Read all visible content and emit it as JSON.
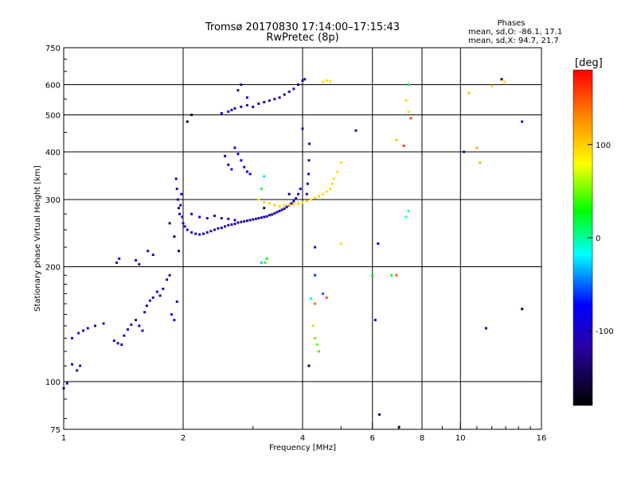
{
  "title": "Tromsø 20170830 17:14:00–17:15:43",
  "subtitle": "RwPretec (8p)",
  "stats": {
    "heading": "Phases",
    "line_o": "mean, sd,O: -86.1, 17.1",
    "line_x": "mean, sd,X:  94.7, 21.7"
  },
  "chart_data": {
    "type": "scatter",
    "title": "Tromsø 20170830 17:14:00–17:15:43",
    "subtitle": "RwPretec (8p)",
    "xlabel": "Frequency [MHz]",
    "ylabel": "Stationary phase Virtual Height [km]",
    "xscale": "log",
    "yscale": "log",
    "xlim": [
      1,
      16
    ],
    "ylim": [
      75,
      750
    ],
    "xticks": [
      1,
      2,
      4,
      6,
      8,
      10,
      16
    ],
    "xgrid": [
      2,
      4,
      6,
      8,
      10
    ],
    "yticks": [
      75,
      100,
      200,
      300,
      400,
      500,
      600,
      750
    ],
    "ygrid": [
      100,
      200,
      300,
      400,
      500,
      600
    ],
    "colorbar": {
      "label": "[deg]",
      "range": [
        -180,
        180
      ],
      "ticks": [
        -100,
        0,
        100
      ],
      "colors": [
        "#000000",
        "#0000ff",
        "#00ffff",
        "#00ff00",
        "#ffff00",
        "#ff0000"
      ]
    },
    "series": [
      {
        "mode": "O",
        "points": [
          [
            1.0,
            96,
            -110
          ],
          [
            1.02,
            99,
            -105
          ],
          [
            1.05,
            111,
            -100
          ],
          [
            1.08,
            107,
            -112
          ],
          [
            1.1,
            110,
            -108
          ],
          [
            1.05,
            130,
            -90
          ],
          [
            1.09,
            134,
            -95
          ],
          [
            1.12,
            136,
            -100
          ],
          [
            1.15,
            138,
            -105
          ],
          [
            1.2,
            140,
            -115
          ],
          [
            1.26,
            142,
            -112
          ],
          [
            1.34,
            128,
            -110
          ],
          [
            1.37,
            126,
            -115
          ],
          [
            1.4,
            125,
            -105
          ],
          [
            1.42,
            132,
            -100
          ],
          [
            1.45,
            137,
            -95
          ],
          [
            1.48,
            141,
            -112
          ],
          [
            1.52,
            145,
            -118
          ],
          [
            1.55,
            140,
            -95
          ],
          [
            1.58,
            136,
            -90
          ],
          [
            1.6,
            152,
            -105
          ],
          [
            1.62,
            158,
            -112
          ],
          [
            1.65,
            163,
            -100
          ],
          [
            1.68,
            166,
            -95
          ],
          [
            1.72,
            172,
            -110
          ],
          [
            1.75,
            168,
            -95
          ],
          [
            1.78,
            175,
            -105
          ],
          [
            1.82,
            185,
            -112
          ],
          [
            1.85,
            190,
            -108
          ],
          [
            1.87,
            150,
            -95
          ],
          [
            1.9,
            145,
            -100
          ],
          [
            1.93,
            162,
            -108
          ],
          [
            1.36,
            205,
            -115
          ],
          [
            1.38,
            210,
            -110
          ],
          [
            1.52,
            208,
            -100
          ],
          [
            1.55,
            203,
            -112
          ],
          [
            1.63,
            220,
            -110
          ],
          [
            1.68,
            215,
            -100
          ],
          [
            1.92,
            340,
            -110
          ],
          [
            1.93,
            320,
            -100
          ],
          [
            1.94,
            300,
            -105
          ],
          [
            1.95,
            285,
            -115
          ],
          [
            1.96,
            275,
            -120
          ],
          [
            1.97,
            290,
            -108
          ],
          [
            1.98,
            310,
            -100
          ],
          [
            1.99,
            270,
            -112
          ],
          [
            2.0,
            260,
            -118
          ],
          [
            2.02,
            255,
            -112
          ],
          [
            2.05,
            250,
            -100
          ],
          [
            2.1,
            246,
            -115
          ],
          [
            2.15,
            244,
            -118
          ],
          [
            2.2,
            243,
            -120
          ],
          [
            2.25,
            244,
            -110
          ],
          [
            2.3,
            246,
            -105
          ],
          [
            2.35,
            248,
            -112
          ],
          [
            2.4,
            250,
            -118
          ],
          [
            2.45,
            252,
            -110
          ],
          [
            2.5,
            253,
            -102
          ],
          [
            2.55,
            255,
            -108
          ],
          [
            2.6,
            257,
            -115
          ],
          [
            2.65,
            258,
            -118
          ],
          [
            2.7,
            259,
            -110
          ],
          [
            2.75,
            261,
            -105
          ],
          [
            2.8,
            262,
            -112
          ],
          [
            2.85,
            263,
            -118
          ],
          [
            2.9,
            264,
            -120
          ],
          [
            2.95,
            265,
            -115
          ],
          [
            3.0,
            266,
            -110
          ],
          [
            3.05,
            267,
            -112
          ],
          [
            3.1,
            268,
            -118
          ],
          [
            3.15,
            269,
            -115
          ],
          [
            3.2,
            270,
            -110
          ],
          [
            3.25,
            271,
            -112
          ],
          [
            3.3,
            273,
            -118
          ],
          [
            3.35,
            274,
            -115
          ],
          [
            3.4,
            276,
            -110
          ],
          [
            3.45,
            278,
            -108
          ],
          [
            3.5,
            280,
            -112
          ],
          [
            3.55,
            282,
            -118
          ],
          [
            3.6,
            284,
            -115
          ],
          [
            3.65,
            287,
            -110
          ],
          [
            3.7,
            290,
            -108
          ],
          [
            3.75,
            293,
            -112
          ],
          [
            3.8,
            297,
            -105
          ],
          [
            3.85,
            302,
            -100
          ],
          [
            3.9,
            310,
            -95
          ],
          [
            3.95,
            320,
            -92
          ],
          [
            2.1,
            275,
            -110
          ],
          [
            2.2,
            270,
            -100
          ],
          [
            2.3,
            268,
            -95
          ],
          [
            2.4,
            272,
            -100
          ],
          [
            2.5,
            268,
            -100
          ],
          [
            2.6,
            267,
            -95
          ],
          [
            2.7,
            265,
            -100
          ],
          [
            4.1,
            310,
            -110
          ],
          [
            4.12,
            330,
            -100
          ],
          [
            4.14,
            350,
            -95
          ],
          [
            4.15,
            380,
            -105
          ],
          [
            4.16,
            420,
            -110
          ],
          [
            2.55,
            390,
            -100
          ],
          [
            2.6,
            370,
            -95
          ],
          [
            2.65,
            360,
            -100
          ],
          [
            2.7,
            410,
            -95
          ],
          [
            2.75,
            395,
            -100
          ],
          [
            2.8,
            380,
            -95
          ],
          [
            2.85,
            365,
            -100
          ],
          [
            2.9,
            355,
            -95
          ],
          [
            2.95,
            350,
            -100
          ],
          [
            2.5,
            505,
            -105
          ],
          [
            2.6,
            510,
            -110
          ],
          [
            2.65,
            515,
            -100
          ],
          [
            2.7,
            520,
            -105
          ],
          [
            2.8,
            525,
            -110
          ],
          [
            2.9,
            530,
            -115
          ],
          [
            3.0,
            525,
            -120
          ],
          [
            3.1,
            535,
            -118
          ],
          [
            3.2,
            540,
            -115
          ],
          [
            3.3,
            545,
            -120
          ],
          [
            3.4,
            550,
            -118
          ],
          [
            3.5,
            555,
            -115
          ],
          [
            3.6,
            565,
            -112
          ],
          [
            3.7,
            575,
            -110
          ],
          [
            3.8,
            585,
            -112
          ],
          [
            3.9,
            600,
            -108
          ],
          [
            4.0,
            615,
            -110
          ],
          [
            4.05,
            620,
            -112
          ],
          [
            2.9,
            555,
            -100
          ],
          [
            2.75,
            580,
            -110
          ],
          [
            2.8,
            600,
            -115
          ]
        ]
      },
      {
        "mode": "X",
        "points": [
          [
            3.1,
            300,
            90
          ],
          [
            3.2,
            295,
            95
          ],
          [
            3.3,
            293,
            92
          ],
          [
            3.4,
            290,
            100
          ],
          [
            3.5,
            288,
            95
          ],
          [
            3.6,
            290,
            98
          ],
          [
            3.7,
            291,
            100
          ],
          [
            3.8,
            292,
            92
          ],
          [
            3.9,
            293,
            95
          ],
          [
            4.0,
            295,
            90
          ],
          [
            4.1,
            297,
            95
          ],
          [
            4.2,
            300,
            92
          ],
          [
            4.3,
            303,
            95
          ],
          [
            4.4,
            306,
            98
          ],
          [
            4.5,
            310,
            95
          ],
          [
            4.6,
            315,
            92
          ],
          [
            4.7,
            320,
            95
          ],
          [
            4.75,
            330,
            90
          ],
          [
            4.8,
            340,
            92
          ],
          [
            4.9,
            355,
            95
          ],
          [
            5.0,
            375,
            90
          ],
          [
            4.5,
            610,
            95
          ],
          [
            4.6,
            615,
            92
          ],
          [
            4.7,
            612,
            90
          ],
          [
            6.9,
            430,
            100
          ],
          [
            7.3,
            545,
            95
          ],
          [
            7.4,
            510,
            90
          ],
          [
            10.5,
            570,
            105
          ],
          [
            11.0,
            410,
            110
          ],
          [
            12.0,
            595,
            95
          ],
          [
            12.9,
            610,
            92
          ],
          [
            5.0,
            230,
            95
          ],
          [
            11.2,
            375,
            110
          ]
        ]
      },
      {
        "mode": "other",
        "points": [
          [
            3.15,
            320,
            20
          ],
          [
            3.2,
            345,
            -25
          ],
          [
            3.22,
            205,
            40
          ],
          [
            3.25,
            210,
            30
          ],
          [
            6.7,
            190,
            20
          ],
          [
            7.3,
            270,
            -15
          ],
          [
            7.4,
            600,
            10
          ],
          [
            7.4,
            280,
            -10
          ],
          [
            6.0,
            190,
            30
          ],
          [
            4.2,
            165,
            -20
          ],
          [
            4.5,
            170,
            -50
          ],
          [
            4.6,
            166,
            150
          ],
          [
            7.5,
            490,
            155
          ],
          [
            7.2,
            415,
            160
          ],
          [
            6.9,
            190,
            150
          ],
          [
            4.3,
            160,
            140
          ],
          [
            4.3,
            190,
            -60
          ],
          [
            4.25,
            140,
            60
          ],
          [
            4.3,
            130,
            50
          ],
          [
            4.35,
            125,
            45
          ],
          [
            4.4,
            120,
            40
          ],
          [
            1.9,
            240,
            -150
          ],
          [
            1.95,
            220,
            -140
          ],
          [
            1.85,
            260,
            -130
          ],
          [
            2.05,
            480,
            -160
          ],
          [
            2.1,
            500,
            -155
          ],
          [
            3.15,
            205,
            -30
          ],
          [
            4.15,
            110,
            -150
          ],
          [
            6.25,
            82,
            -140
          ],
          [
            7.0,
            76,
            -150
          ],
          [
            12.7,
            620,
            -145
          ],
          [
            14.3,
            155,
            -150
          ],
          [
            10.2,
            400,
            -120
          ],
          [
            6.1,
            145,
            -110
          ],
          [
            6.2,
            230,
            -100
          ],
          [
            14.3,
            480,
            -105
          ],
          [
            4.3,
            225,
            -100
          ],
          [
            4.0,
            460,
            -115
          ],
          [
            5.45,
            455,
            -120
          ],
          [
            11.6,
            138,
            -130
          ],
          [
            3.2,
            285,
            -160
          ],
          [
            3.7,
            310,
            -150
          ]
        ]
      }
    ]
  }
}
